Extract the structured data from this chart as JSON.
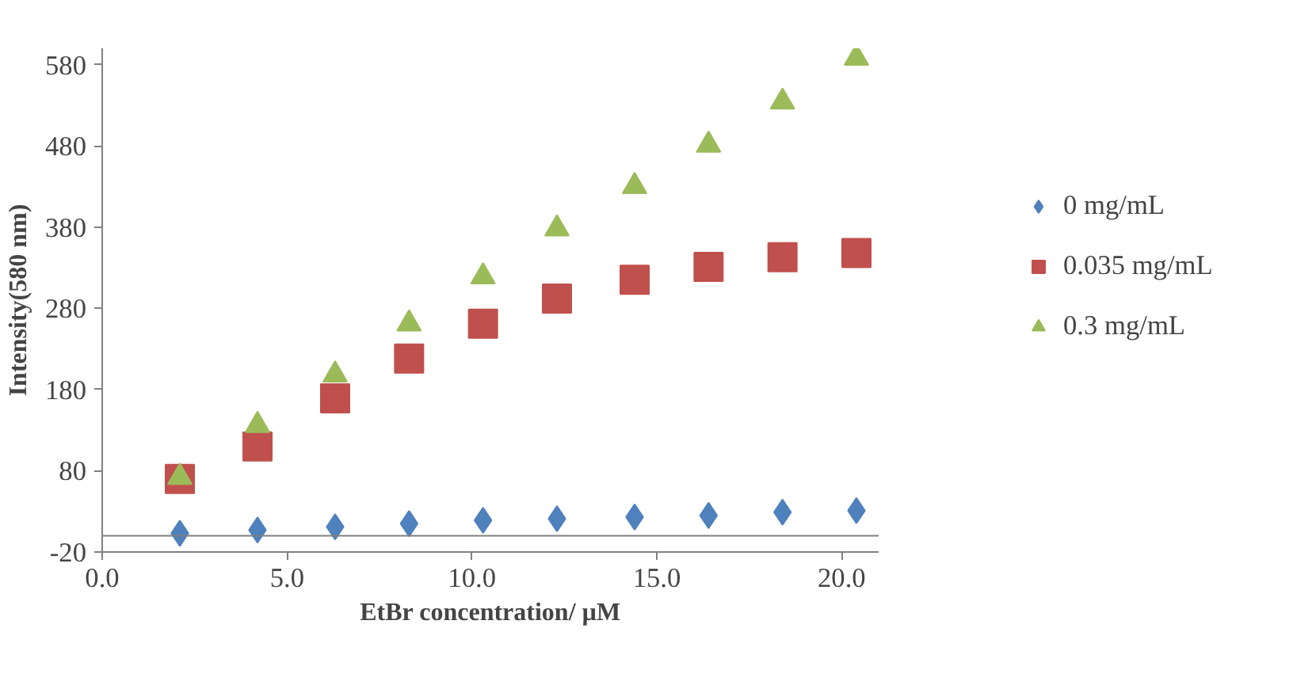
{
  "chart_data": {
    "type": "scatter",
    "xlabel": "EtBr concentration/ µM",
    "ylabel": "Intensity(580 nm)",
    "x": [
      2.1,
      4.2,
      6.3,
      8.3,
      10.3,
      12.3,
      14.4,
      16.4,
      18.4,
      20.4
    ],
    "series": [
      {
        "name": "0 mg/mL",
        "color": "#4f81bd",
        "marker": "diamond",
        "values": [
          3,
          7,
          11,
          15,
          19,
          21,
          23,
          25,
          29,
          31
        ]
      },
      {
        "name": "0.035 mg/mL",
        "color": "#c0504d",
        "marker": "square",
        "values": [
          70,
          110,
          169,
          218,
          261,
          292,
          315,
          331,
          343,
          348
        ]
      },
      {
        "name": "0.3 mg/mL",
        "color": "#9bbb59",
        "marker": "triangle",
        "values": [
          72,
          136,
          198,
          261,
          319,
          378,
          430,
          481,
          534,
          588
        ]
      }
    ],
    "xlim": [
      0,
      21
    ],
    "xticks": [
      {
        "value": 0,
        "label": "0.0"
      },
      {
        "value": 5,
        "label": "5.0"
      },
      {
        "value": 10,
        "label": "10.0"
      },
      {
        "value": 15,
        "label": "15.0"
      },
      {
        "value": 20,
        "label": "20.0"
      }
    ],
    "ylim": [
      -20,
      600
    ],
    "yticks": [
      -20,
      80,
      180,
      280,
      380,
      480,
      580
    ],
    "ref_lines": [
      {
        "axis": "y",
        "value": 0,
        "color": "#808080"
      }
    ],
    "grid": false,
    "legend": "right"
  }
}
